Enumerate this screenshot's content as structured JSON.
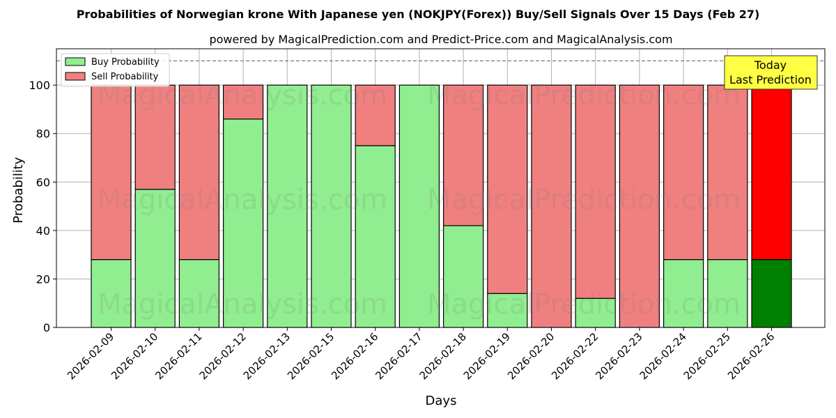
{
  "chart_data": {
    "type": "bar",
    "title": "Probabilities of Norwegian krone With Japanese yen (NOKJPY(Forex)) Buy/Sell Signals Over 15 Days (Feb 27)",
    "subtitle": "powered by MagicalPrediction.com and Predict-Price.com and MagicalAnalysis.com",
    "xlabel": "Days",
    "ylabel": "Probability",
    "ylim": [
      0,
      115
    ],
    "yticks": [
      0,
      20,
      40,
      60,
      80,
      100
    ],
    "grid": true,
    "stacked": true,
    "reference_line": 110,
    "categories": [
      "2026-02-09",
      "2026-02-10",
      "2026-02-11",
      "2026-02-12",
      "2026-02-13",
      "2026-02-15",
      "2026-02-16",
      "2026-02-17",
      "2026-02-18",
      "2026-02-19",
      "2026-02-20",
      "2026-02-22",
      "2026-02-23",
      "2026-02-24",
      "2026-02-25",
      "2026-02-26"
    ],
    "series": [
      {
        "name": "Buy Probability",
        "color": "#90ee90",
        "highlight_color": "#008000",
        "values": [
          28,
          57,
          28,
          86,
          100,
          100,
          75,
          100,
          42,
          14,
          0,
          12,
          0,
          28,
          28,
          28
        ]
      },
      {
        "name": "Sell Probability",
        "color": "#f08080",
        "highlight_color": "#ff0000",
        "values": [
          72,
          43,
          72,
          14,
          0,
          0,
          25,
          0,
          58,
          86,
          100,
          88,
          100,
          72,
          72,
          72
        ]
      }
    ],
    "legend": "top-left",
    "annotation": {
      "lines": [
        "Today",
        "Last Prediction"
      ],
      "color": "#ffff44"
    },
    "watermark": [
      "MagicalAnalysis.com",
      "MagicalPrediction.com"
    ]
  }
}
